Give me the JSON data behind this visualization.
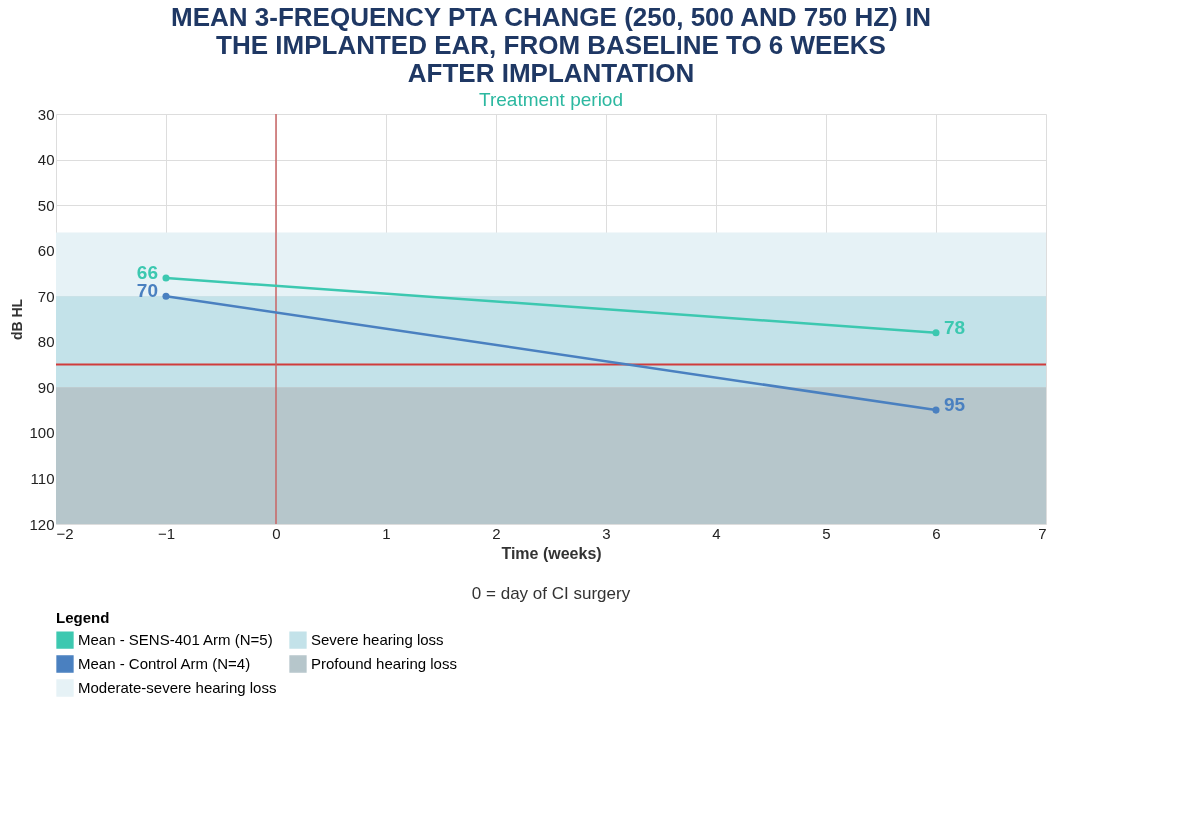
{
  "chart_data": {
    "type": "line",
    "title": [
      "MEAN 3-FREQUENCY PTA CHANGE (250, 500 AND 750 HZ) IN",
      "THE IMPLANTED EAR, FROM BASELINE TO 6 WEEKS",
      "AFTER IMPLANTATION"
    ],
    "xlabel": "Time (weeks)",
    "ylabel": "dB HL",
    "legend_title": "Legend",
    "x": [
      -1,
      6
    ],
    "series": [
      {
        "name": "Mean - SENS-401 Arm (N=5)",
        "color": "#3cc8b0",
        "values": [
          66,
          78
        ]
      },
      {
        "name": "Mean - Control Arm (N=4)",
        "color": "#4a80c0",
        "values": [
          70,
          95
        ]
      }
    ],
    "data_labels": true,
    "xlim": [
      -2,
      7
    ],
    "xticks": [
      -2,
      -1,
      0,
      1,
      2,
      3,
      4,
      5,
      6,
      7
    ],
    "ylim": [
      120,
      30
    ],
    "yticks": [
      30,
      40,
      50,
      60,
      70,
      80,
      90,
      100,
      110,
      120
    ],
    "bands": [
      {
        "axis": "y",
        "from": 56,
        "to": 70,
        "label": "Moderate-severe hearing loss",
        "color": "#e6f2f6"
      },
      {
        "axis": "y",
        "from": 70,
        "to": 90,
        "label": "Severe hearing loss",
        "color": "#c3e2e9"
      },
      {
        "axis": "y",
        "from": 90,
        "to": 120,
        "label": "Profound hearing loss",
        "color": "#b6c6cb"
      }
    ],
    "ref_lines": [
      {
        "axis": "y",
        "value": 85,
        "color": "#d03c3c"
      },
      {
        "axis": "x",
        "value": 0,
        "color": "#c86464"
      }
    ],
    "annotations": [
      "Treatment period",
      "0 = day of CI surgery"
    ],
    "grid": true,
    "marker": "circle",
    "line_style": "solid",
    "legend": "bottom"
  }
}
